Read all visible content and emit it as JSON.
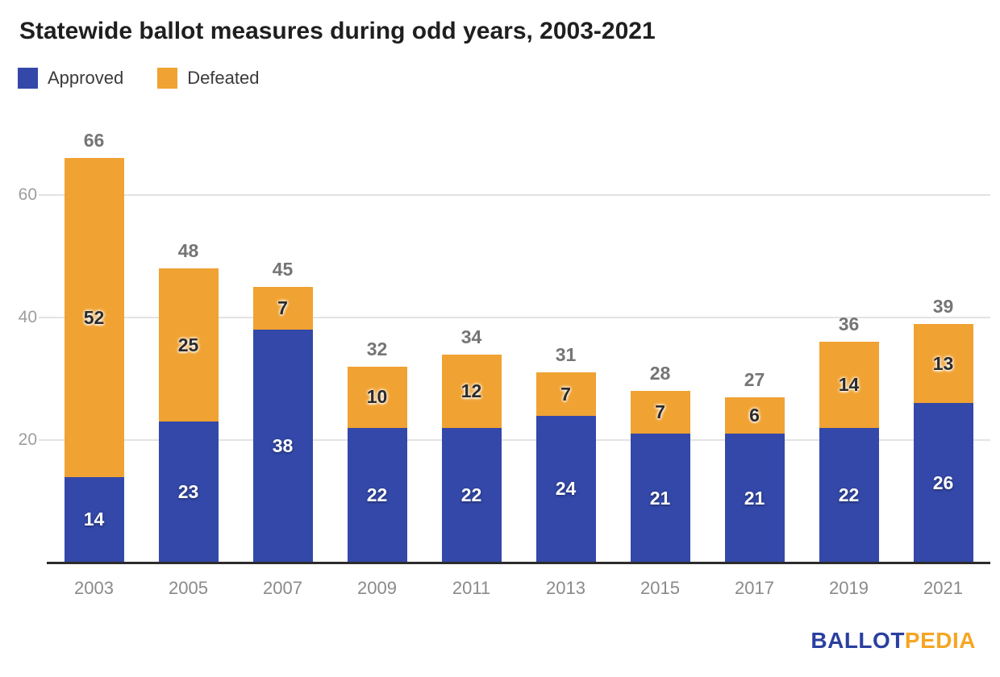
{
  "title": "Statewide ballot measures during odd years, 2003-2021",
  "legend": [
    {
      "label": "Approved",
      "color": "#3348a8"
    },
    {
      "label": "Defeated",
      "color": "#f0a232"
    }
  ],
  "branding": {
    "part1": "BALLOT",
    "part2": "PEDIA",
    "ballot_color": "#2a3f9f",
    "pedia_color": "#f5a623"
  },
  "chart_data": {
    "type": "bar",
    "stacked": true,
    "title": "Statewide ballot measures during odd years, 2003-2021",
    "xlabel": "",
    "ylabel": "",
    "categories": [
      "2003",
      "2005",
      "2007",
      "2009",
      "2011",
      "2013",
      "2015",
      "2017",
      "2019",
      "2021"
    ],
    "series": [
      {
        "name": "Approved",
        "color": "#3348a8",
        "values": [
          14,
          23,
          38,
          22,
          22,
          24,
          21,
          21,
          22,
          26
        ]
      },
      {
        "name": "Defeated",
        "color": "#f0a232",
        "values": [
          52,
          25,
          7,
          10,
          12,
          7,
          7,
          6,
          14,
          13
        ]
      }
    ],
    "totals": [
      66,
      48,
      45,
      32,
      34,
      31,
      28,
      27,
      36,
      39
    ],
    "yticks": [
      20,
      40,
      60
    ],
    "ylim": [
      0,
      66
    ],
    "grid": true,
    "legend_position": "top-left"
  }
}
